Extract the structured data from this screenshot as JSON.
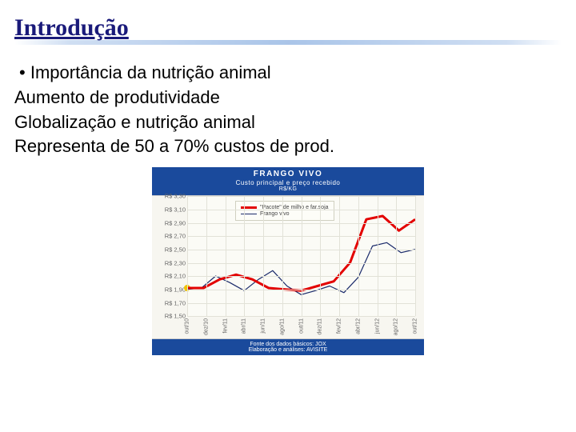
{
  "title": "Introdução",
  "bullets": {
    "b1": "Importância da nutrição animal"
  },
  "lines": {
    "l1": "Aumento de produtividade",
    "l2": "Globalização e nutrição animal",
    "l3": "Representa de 50 a 70% custos de prod."
  },
  "chart": {
    "type": "line",
    "header_title": "FRANGO VIVO",
    "header_sub": "Custo principal e preço recebido",
    "header_unit": "R$/KG",
    "footer_line1": "Fonte dos dados básicos: JOX",
    "footer_line2": "Elaboração e análises: AVISITE",
    "background_color": "#fbfbf6",
    "grid_color": "#e2e2d8",
    "header_bg": "#1a4a9c",
    "colors": {
      "pacote": "#e30000",
      "frango": "#1a2a6a"
    },
    "line_widths": {
      "pacote": 3,
      "frango": 1.2
    },
    "ylim": [
      1.5,
      3.3
    ],
    "ytick_step": 0.2,
    "yticks": [
      "R$ 3,30",
      "R$ 3,10",
      "R$ 2,90",
      "R$ 2,70",
      "R$ 2,50",
      "R$ 2,30",
      "R$ 2,10",
      "R$ 1,90",
      "R$ 1,70",
      "R$ 1,50"
    ],
    "xlabels": [
      "out/10",
      "dez/10",
      "fev/11",
      "abr/11",
      "jun/11",
      "ago/11",
      "out/11",
      "dez/11",
      "fev/12",
      "abr/12",
      "jun/12",
      "ago/12",
      "out/12"
    ],
    "legend": {
      "pacote": "\"Pacote\" de milho e far.soja",
      "frango": "Frango vivo"
    },
    "series": {
      "pacote": [
        1.92,
        1.92,
        2.05,
        2.12,
        2.05,
        1.92,
        1.9,
        1.88,
        1.95,
        2.02,
        2.3,
        2.95,
        3.0,
        2.78,
        2.95
      ],
      "frango": [
        1.9,
        1.92,
        2.1,
        2.0,
        1.88,
        2.05,
        2.18,
        1.95,
        1.82,
        1.88,
        1.95,
        1.85,
        2.08,
        2.55,
        2.6,
        2.45,
        2.5
      ]
    }
  }
}
